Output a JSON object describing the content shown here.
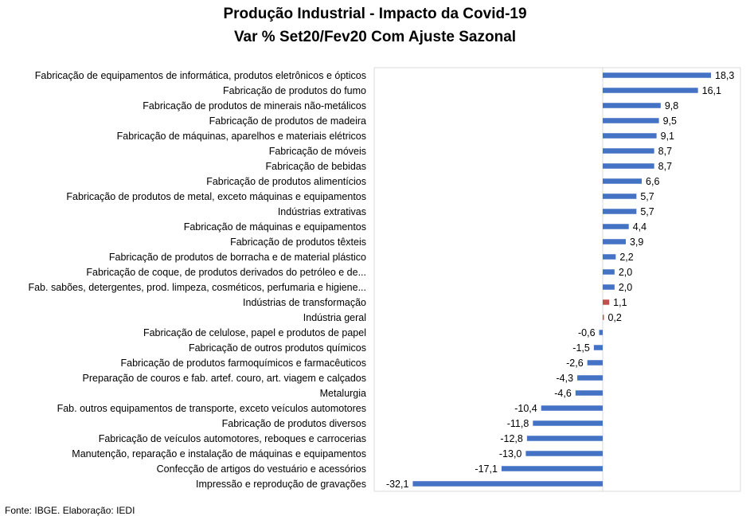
{
  "chart_data": {
    "type": "bar",
    "orientation": "horizontal",
    "title": "Produção Industrial - Impacto da Covid-19",
    "subtitle": "Var % Set20/Fev20 Com Ajuste Sazonal",
    "xlabel": "",
    "ylabel": "",
    "xlim": [
      -35,
      20
    ],
    "grid": "x",
    "legend": "none",
    "colors": {
      "default": "#4472C4",
      "highlight": "#C0504D"
    },
    "highlight_categories": [
      "Indústrias de transformação",
      "Indústria geral"
    ],
    "categories": [
      "Fabricação de equipamentos de informática, produtos eletrônicos e ópticos",
      "Fabricação de produtos do fumo",
      "Fabricação de produtos de minerais não-metálicos",
      "Fabricação de produtos de madeira",
      "Fabricação de máquinas, aparelhos e materiais elétricos",
      "Fabricação de móveis",
      "Fabricação de bebidas",
      "Fabricação de produtos alimentícios",
      "Fabricação de produtos de metal, exceto máquinas e equipamentos",
      "Indústrias extrativas",
      "Fabricação de máquinas e equipamentos",
      "Fabricação de produtos têxteis",
      "Fabricação de produtos de borracha e de material plástico",
      "Fabricação de coque, de produtos derivados do petróleo e de...",
      "Fab. sabões, detergentes, prod. limpeza, cosméticos, perfumaria e higiene...",
      "Indústrias de transformação",
      "Indústria geral",
      "Fabricação de celulose, papel e produtos de papel",
      "Fabricação de outros produtos químicos",
      "Fabricação de produtos farmoquímicos e farmacêuticos",
      "Preparação de couros e fab. artef. couro, art. viagem e calçados",
      "Metalurgia",
      "Fab. outros equipamentos de transporte, exceto veículos automotores",
      "Fabricação de produtos diversos",
      "Fabricação de veículos automotores, reboques e carrocerias",
      "Manutenção, reparação e instalação de máquinas e equipamentos",
      "Confecção de artigos do vestuário e acessórios",
      "Impressão e reprodução de gravações"
    ],
    "values": [
      18.3,
      16.1,
      9.8,
      9.5,
      9.1,
      8.7,
      8.7,
      6.6,
      5.7,
      5.7,
      4.4,
      3.9,
      2.2,
      2.0,
      2.0,
      1.1,
      0.2,
      -0.6,
      -1.5,
      -2.6,
      -4.3,
      -4.6,
      -10.4,
      -11.8,
      -12.8,
      -13.0,
      -17.1,
      -32.1
    ],
    "value_labels": [
      "18,3",
      "16,1",
      "9,8",
      "9,5",
      "9,1",
      "8,7",
      "8,7",
      "6,6",
      "5,7",
      "5,7",
      "4,4",
      "3,9",
      "2,2",
      "2,0",
      "2,0",
      "1,1",
      "0,2",
      "-0,6",
      "-1,5",
      "-2,6",
      "-4,3",
      "-4,6",
      "-10,4",
      "-11,8",
      "-12,8",
      "-13,0",
      "-17,1",
      "-32,1"
    ]
  },
  "footer": {
    "source": "Fonte: IBGE. Elaboração: IEDI"
  }
}
